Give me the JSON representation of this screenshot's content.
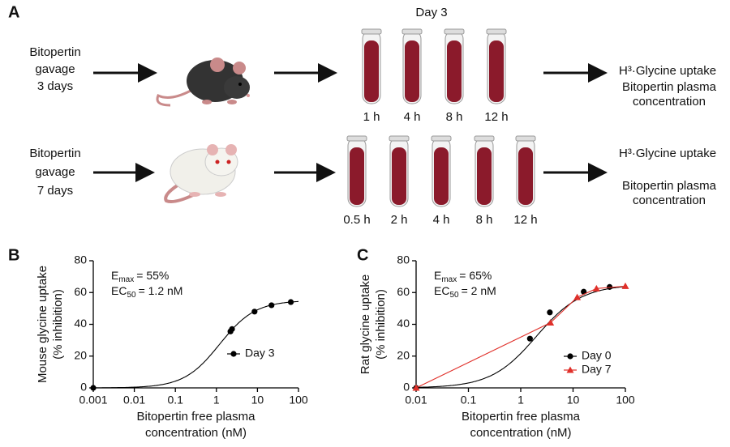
{
  "panel_a": {
    "label": "A",
    "day_label": "Day 3",
    "rows": [
      {
        "treatment": [
          "Bitopertin",
          "gavage",
          "3 days"
        ],
        "times": [
          "1 h",
          "4 h",
          "8 h",
          "12 h"
        ],
        "readouts": [
          "H³·Glycine uptake",
          "Bitopertin plasma",
          "concentration"
        ]
      },
      {
        "treatment": [
          "Bitopertin",
          "gavage",
          "7 days"
        ],
        "times": [
          "0.5 h",
          "2 h",
          "4 h",
          "8 h",
          "12 h"
        ],
        "readouts": [
          "H³·Glycine uptake",
          "Bitopertin plasma",
          "concentration"
        ]
      }
    ]
  },
  "chart_data": [
    {
      "type": "scatter",
      "panel_label": "B",
      "log_x": true,
      "y_label": [
        "Mouse glycine uptake",
        "(% inhibition)"
      ],
      "x_label": [
        "Bitopertin free plasma",
        "concentration (nM)"
      ],
      "xlim": [
        0.001,
        100
      ],
      "xticks": [
        0.001,
        0.01,
        0.1,
        1,
        10,
        100
      ],
      "ylim": [
        0,
        80
      ],
      "yticks": [
        0,
        20,
        40,
        60,
        80
      ],
      "annotations": [
        {
          "name": "E",
          "sub": "max",
          "value": 55,
          "label": "= 55%"
        },
        {
          "name": "EC",
          "sub": "50",
          "value": 1.2,
          "label": "= 1.2 nM"
        }
      ],
      "series": [
        {
          "name": "Day 3",
          "color": "#000000",
          "marker": "circle",
          "x": [
            0.001,
            2.2,
            2.4,
            8.5,
            22,
            65
          ],
          "values": [
            0,
            35.5,
            37,
            48,
            52,
            54
          ]
        }
      ]
    },
    {
      "type": "scatter",
      "panel_label": "C",
      "log_x": true,
      "y_label": [
        "Rat glycine uptake",
        "(% inhibition)"
      ],
      "x_label": [
        "Bitopertin free plasma",
        "concentration (nM)"
      ],
      "xlim": [
        0.01,
        100
      ],
      "xticks": [
        0.01,
        0.1,
        1,
        10,
        100
      ],
      "ylim": [
        0,
        80
      ],
      "yticks": [
        0,
        20,
        40,
        60,
        80
      ],
      "annotations": [
        {
          "name": "E",
          "sub": "max",
          "value": 65,
          "label": "= 65%"
        },
        {
          "name": "EC",
          "sub": "50",
          "value": 2,
          "label": "= 2 nM"
        }
      ],
      "series": [
        {
          "name": "Day 0",
          "color": "#000000",
          "marker": "circle",
          "x": [
            0.01,
            1.5,
            3.6,
            16,
            50
          ],
          "values": [
            0,
            31,
            47.5,
            60.5,
            63.5
          ]
        },
        {
          "name": "Day 7",
          "color": "#e0302a",
          "marker": "triangle",
          "x": [
            0.01,
            3.7,
            12,
            28,
            100
          ],
          "values": [
            0,
            41,
            57,
            62.5,
            64
          ]
        }
      ]
    }
  ]
}
